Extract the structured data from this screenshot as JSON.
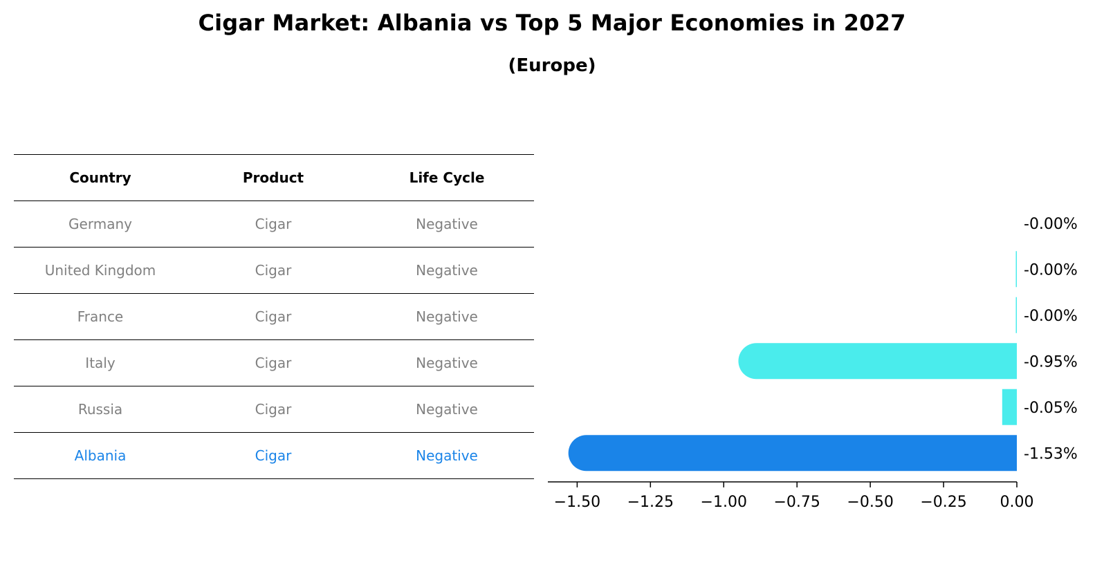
{
  "title": "Cigar Market: Albania vs Top 5 Major Economies in 2027",
  "subtitle": "(Europe)",
  "table": {
    "headers": [
      "Country",
      "Product",
      "Life Cycle"
    ],
    "rows": [
      [
        "Germany",
        "Cigar",
        "Negative"
      ],
      [
        "United Kingdom",
        "Cigar",
        "Negative"
      ],
      [
        "France",
        "Cigar",
        "Negative"
      ],
      [
        "Italy",
        "Cigar",
        "Negative"
      ],
      [
        "Russia",
        "Cigar",
        "Negative"
      ],
      [
        "Albania",
        "Cigar",
        "Negative"
      ]
    ],
    "highlight_row": 5
  },
  "colors": {
    "highlight": "#1a84e8",
    "bar": "#4aecec",
    "highlight_bar": "#1a84e8",
    "muted_text": "#808080"
  },
  "chart_data": {
    "type": "bar",
    "orientation": "horizontal",
    "categories": [
      "Germany",
      "United Kingdom",
      "France",
      "Italy",
      "Russia",
      "Albania"
    ],
    "values": [
      -0.0,
      -0.0,
      -0.0,
      -0.95,
      -0.05,
      -1.53
    ],
    "labels": [
      "-0.00%",
      "-0.00%",
      "-0.00%",
      "-0.95%",
      "-0.05%",
      "-1.53%"
    ],
    "highlight_category": "Albania",
    "xlim": [
      -1.6,
      0.0
    ],
    "xticks": [
      -1.5,
      -1.25,
      -1.0,
      -0.75,
      -0.5,
      -0.25,
      0.0
    ],
    "xtick_labels": [
      "−1.50",
      "−1.25",
      "−1.00",
      "−0.75",
      "−0.50",
      "−0.25",
      "0.00"
    ],
    "grid": false,
    "xlabel": "",
    "ylabel": ""
  }
}
